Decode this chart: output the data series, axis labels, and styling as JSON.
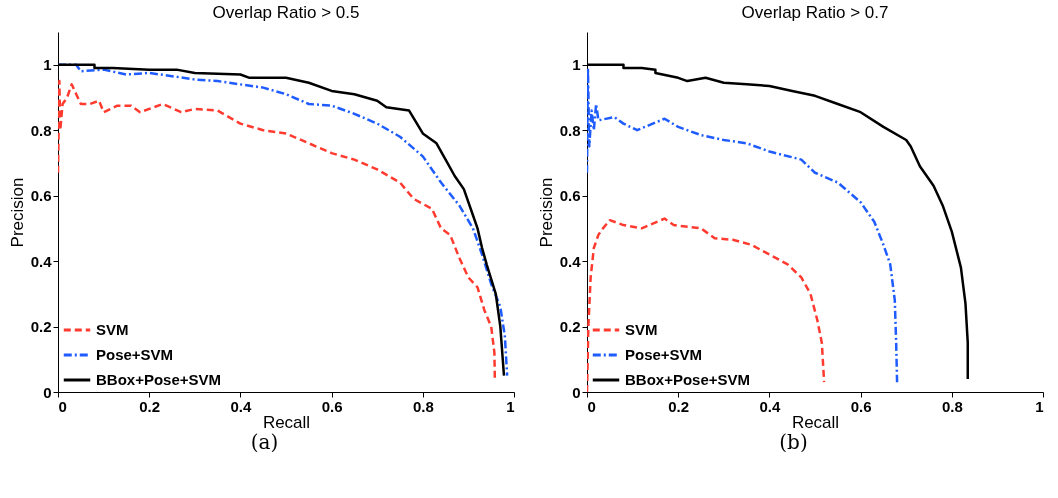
{
  "chart_data": [
    {
      "type": "line",
      "title": "Overlap Ratio > 0.5",
      "xlabel": "Recall",
      "ylabel": "Precision",
      "annotations": [
        "(a)"
      ],
      "xlim": [
        0,
        1
      ],
      "ylim": [
        0,
        1.1
      ],
      "xticks": [
        0,
        0.2,
        0.4,
        0.6,
        0.8,
        1
      ],
      "yticks": [
        0,
        0.2,
        0.4,
        0.6,
        0.8,
        1
      ],
      "grid": false,
      "legend": "bottom left",
      "series": [
        {
          "name": "SVM",
          "color": "#ff3b30",
          "line_style": "dashed",
          "x": [
            0,
            0.003,
            0.005,
            0.01,
            0.02,
            0.03,
            0.04,
            0.05,
            0.07,
            0.09,
            0.1,
            0.13,
            0.16,
            0.18,
            0.23,
            0.27,
            0.3,
            0.35,
            0.4,
            0.45,
            0.5,
            0.55,
            0.6,
            0.65,
            0.7,
            0.75,
            0.78,
            0.82,
            0.84,
            0.86,
            0.88,
            0.9,
            0.92,
            0.935,
            0.95,
            0.957,
            0.958
          ],
          "values": [
            0.67,
            0.95,
            0.8,
            0.88,
            0.9,
            0.94,
            0.91,
            0.88,
            0.88,
            0.89,
            0.855,
            0.875,
            0.875,
            0.855,
            0.88,
            0.855,
            0.865,
            0.86,
            0.82,
            0.8,
            0.79,
            0.76,
            0.73,
            0.71,
            0.68,
            0.64,
            0.59,
            0.56,
            0.5,
            0.48,
            0.41,
            0.35,
            0.32,
            0.25,
            0.2,
            0.12,
            0.04
          ]
        },
        {
          "name": "Pose+SVM",
          "color": "#1f5cff",
          "line_style": "dashdot",
          "x": [
            0,
            0.04,
            0.05,
            0.1,
            0.15,
            0.2,
            0.25,
            0.3,
            0.35,
            0.4,
            0.45,
            0.5,
            0.55,
            0.6,
            0.65,
            0.7,
            0.75,
            0.8,
            0.84,
            0.88,
            0.91,
            0.93,
            0.95,
            0.97,
            0.98,
            0.985
          ],
          "values": [
            1,
            1,
            0.98,
            0.985,
            0.97,
            0.975,
            0.965,
            0.955,
            0.95,
            0.94,
            0.93,
            0.91,
            0.88,
            0.875,
            0.85,
            0.82,
            0.78,
            0.72,
            0.64,
            0.57,
            0.5,
            0.42,
            0.33,
            0.26,
            0.17,
            0.05
          ]
        },
        {
          "name": "BBox+Pose+SVM",
          "color": "#000000",
          "line_style": "solid",
          "x": [
            0,
            0.08,
            0.08,
            0.12,
            0.2,
            0.26,
            0.3,
            0.4,
            0.42,
            0.5,
            0.55,
            0.6,
            0.65,
            0.7,
            0.72,
            0.77,
            0.8,
            0.83,
            0.85,
            0.87,
            0.89,
            0.91,
            0.92,
            0.93,
            0.94,
            0.96,
            0.97,
            0.978
          ],
          "values": [
            1,
            1,
            0.99,
            0.99,
            0.985,
            0.985,
            0.975,
            0.97,
            0.96,
            0.96,
            0.945,
            0.92,
            0.91,
            0.89,
            0.87,
            0.86,
            0.79,
            0.76,
            0.71,
            0.66,
            0.62,
            0.54,
            0.5,
            0.44,
            0.39,
            0.3,
            0.2,
            0.05
          ]
        }
      ]
    },
    {
      "type": "line",
      "title": "Overlap Ratio > 0.7",
      "xlabel": "Recall",
      "ylabel": "Precision",
      "annotations": [
        "(b)"
      ],
      "xlim": [
        0,
        1
      ],
      "ylim": [
        0,
        1.1
      ],
      "xticks": [
        0,
        0.2,
        0.4,
        0.6,
        0.8,
        1
      ],
      "yticks": [
        0,
        0.2,
        0.4,
        0.6,
        0.8,
        1
      ],
      "grid": false,
      "legend": "bottom left",
      "series": [
        {
          "name": "SVM",
          "color": "#ff3b30",
          "line_style": "dashed",
          "x": [
            0,
            0.003,
            0.008,
            0.015,
            0.025,
            0.035,
            0.05,
            0.08,
            0.12,
            0.17,
            0.19,
            0.25,
            0.28,
            0.32,
            0.36,
            0.4,
            0.44,
            0.47,
            0.49,
            0.505,
            0.515,
            0.52
          ],
          "values": [
            0,
            0.2,
            0.35,
            0.44,
            0.48,
            0.5,
            0.525,
            0.51,
            0.5,
            0.53,
            0.51,
            0.5,
            0.47,
            0.465,
            0.45,
            0.42,
            0.39,
            0.35,
            0.3,
            0.22,
            0.15,
            0.03
          ]
        },
        {
          "name": "Pose+SVM",
          "color": "#1f5cff",
          "line_style": "dashdot",
          "x": [
            0,
            0.002,
            0.005,
            0.01,
            0.015,
            0.02,
            0.025,
            0.06,
            0.08,
            0.11,
            0.17,
            0.2,
            0.25,
            0.3,
            0.35,
            0.4,
            0.47,
            0.5,
            0.55,
            0.6,
            0.63,
            0.65,
            0.665,
            0.675,
            0.678,
            0.68
          ],
          "values": [
            0.67,
            0.99,
            0.75,
            0.86,
            0.8,
            0.88,
            0.83,
            0.84,
            0.82,
            0.8,
            0.835,
            0.81,
            0.785,
            0.77,
            0.76,
            0.735,
            0.71,
            0.67,
            0.64,
            0.58,
            0.52,
            0.45,
            0.39,
            0.28,
            0.15,
            0.03
          ]
        },
        {
          "name": "BBox+Pose+SVM",
          "color": "#000000",
          "line_style": "solid",
          "x": [
            0,
            0.08,
            0.08,
            0.12,
            0.15,
            0.15,
            0.2,
            0.22,
            0.26,
            0.3,
            0.35,
            0.4,
            0.45,
            0.5,
            0.55,
            0.6,
            0.65,
            0.7,
            0.71,
            0.73,
            0.76,
            0.78,
            0.8,
            0.82,
            0.83,
            0.835,
            0.835
          ],
          "values": [
            1,
            1,
            0.99,
            0.99,
            0.985,
            0.975,
            0.96,
            0.95,
            0.96,
            0.945,
            0.94,
            0.935,
            0.92,
            0.905,
            0.88,
            0.855,
            0.81,
            0.77,
            0.75,
            0.69,
            0.63,
            0.57,
            0.49,
            0.38,
            0.27,
            0.15,
            0.04
          ]
        }
      ]
    }
  ]
}
